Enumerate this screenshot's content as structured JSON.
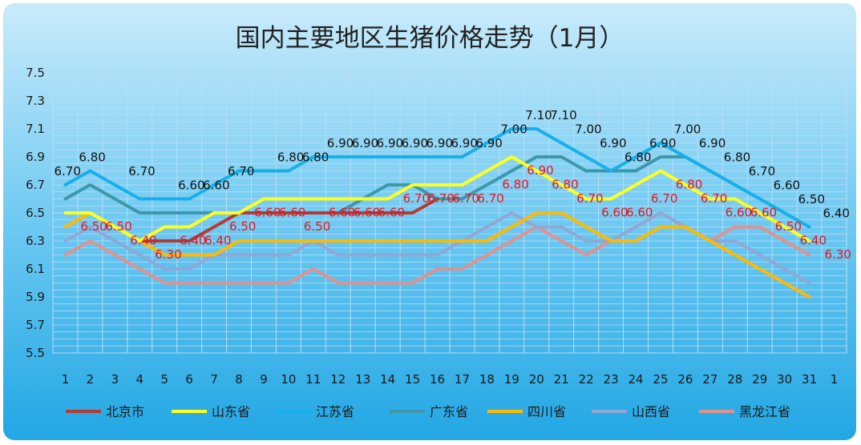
{
  "chart_data": {
    "type": "line",
    "title": "国内主要地区生猪价格走势（1月）",
    "xlabel": "",
    "ylabel": "",
    "ylim": [
      5.5,
      7.5
    ],
    "yticks": [
      "5.5",
      "5.7",
      "5.9",
      "6.1",
      "6.3",
      "6.5",
      "6.7",
      "6.9",
      "7.1",
      "7.3",
      "7.5"
    ],
    "categories": [
      "1",
      "2",
      "3",
      "4",
      "5",
      "6",
      "7",
      "8",
      "9",
      "10",
      "11",
      "12",
      "13",
      "14",
      "15",
      "16",
      "17",
      "18",
      "19",
      "20",
      "21",
      "22",
      "23",
      "24",
      "25",
      "26",
      "27",
      "28",
      "29",
      "30",
      "31",
      "1"
    ],
    "grid": true,
    "legend_position": "bottom",
    "series": [
      {
        "name": "北京市",
        "color": "#b53a36",
        "values": [
          null,
          null,
          null,
          6.3,
          6.3,
          6.3,
          6.4,
          6.5,
          6.5,
          6.5,
          6.5,
          6.5,
          6.5,
          6.5,
          6.5,
          6.6,
          null,
          null,
          null,
          null,
          null,
          null,
          null,
          null,
          null,
          null,
          null,
          null,
          null,
          null,
          null,
          null
        ]
      },
      {
        "name": "山东省",
        "color": "#ffff1e",
        "values": [
          6.5,
          6.5,
          6.4,
          6.3,
          6.4,
          6.4,
          6.5,
          6.5,
          6.6,
          6.6,
          6.6,
          6.6,
          6.6,
          6.6,
          6.7,
          6.7,
          6.7,
          6.8,
          6.9,
          6.8,
          6.7,
          6.6,
          6.6,
          6.7,
          6.8,
          6.7,
          6.6,
          6.6,
          6.5,
          6.4,
          6.3,
          null
        ]
      },
      {
        "name": "江苏省",
        "color": "#17b0ea",
        "values": [
          6.7,
          6.8,
          6.7,
          6.6,
          6.6,
          6.6,
          6.7,
          6.8,
          6.8,
          6.8,
          6.9,
          6.9,
          6.9,
          6.9,
          6.9,
          6.9,
          6.9,
          7.0,
          7.1,
          7.1,
          7.0,
          6.9,
          6.8,
          6.9,
          7.0,
          6.9,
          6.8,
          6.7,
          6.6,
          6.5,
          6.4,
          null
        ]
      },
      {
        "name": "广东省",
        "color": "#3d98a9",
        "values": [
          6.6,
          6.7,
          6.6,
          6.5,
          6.5,
          6.5,
          6.5,
          6.5,
          6.5,
          6.5,
          6.5,
          6.5,
          6.6,
          6.7,
          6.7,
          6.6,
          6.6,
          6.7,
          6.8,
          6.9,
          6.9,
          6.8,
          6.8,
          6.8,
          6.9,
          6.9,
          6.8,
          6.7,
          6.6,
          6.5,
          null,
          null
        ]
      },
      {
        "name": "四川省",
        "color": "#ffba00",
        "values": [
          6.4,
          6.5,
          6.4,
          6.3,
          6.2,
          6.2,
          6.2,
          6.3,
          6.3,
          6.3,
          6.3,
          6.3,
          6.3,
          6.3,
          6.3,
          6.3,
          6.3,
          6.3,
          6.4,
          6.5,
          6.5,
          6.4,
          6.3,
          6.3,
          6.4,
          6.4,
          6.3,
          6.2,
          6.1,
          6.0,
          5.9,
          null
        ]
      },
      {
        "name": "山西省",
        "color": "#8fa8d4",
        "values": [
          6.3,
          6.4,
          6.3,
          6.2,
          6.1,
          6.1,
          6.2,
          6.2,
          6.2,
          6.2,
          6.3,
          6.2,
          6.2,
          6.2,
          6.2,
          6.2,
          6.3,
          6.4,
          6.5,
          6.4,
          6.4,
          6.3,
          6.3,
          6.4,
          6.5,
          6.4,
          6.3,
          6.3,
          6.2,
          6.1,
          6.0,
          null
        ]
      },
      {
        "name": "黑龙江省",
        "color": "#e0928f",
        "values": [
          6.2,
          6.3,
          6.2,
          6.1,
          6.0,
          6.0,
          6.0,
          6.0,
          6.0,
          6.0,
          6.1,
          6.0,
          6.0,
          6.0,
          6.0,
          6.1,
          6.1,
          6.2,
          6.3,
          6.4,
          6.3,
          6.2,
          6.3,
          6.4,
          6.5,
          6.4,
          6.3,
          6.4,
          6.4,
          6.3,
          6.2,
          null
        ]
      }
    ],
    "data_labels_black": [
      {
        "x": "1",
        "value": 6.7,
        "text": "6.70"
      },
      {
        "x": "2",
        "value": 6.8,
        "text": "6.80"
      },
      {
        "x": "4",
        "value": 6.7,
        "text": "6.70"
      },
      {
        "x": "6",
        "value": 6.6,
        "text": "6.60"
      },
      {
        "x": "7",
        "value": 6.6,
        "text": "6.60"
      },
      {
        "x": "8",
        "value": 6.7,
        "text": "6.70"
      },
      {
        "x": "10",
        "value": 6.8,
        "text": "6.80"
      },
      {
        "x": "11",
        "value": 6.8,
        "text": "6.80"
      },
      {
        "x": "12",
        "value": 6.9,
        "text": "6.90"
      },
      {
        "x": "13",
        "value": 6.9,
        "text": "6.90"
      },
      {
        "x": "14",
        "value": 6.9,
        "text": "6.90"
      },
      {
        "x": "15",
        "value": 6.9,
        "text": "6.90"
      },
      {
        "x": "16",
        "value": 6.9,
        "text": "6.90"
      },
      {
        "x": "17",
        "value": 6.9,
        "text": "6.90"
      },
      {
        "x": "18",
        "value": 6.9,
        "text": "6.90"
      },
      {
        "x": "19",
        "value": 7.0,
        "text": "7.00"
      },
      {
        "x": "20",
        "value": 7.1,
        "text": "7.10"
      },
      {
        "x": "21",
        "value": 7.1,
        "text": "7.10"
      },
      {
        "x": "22",
        "value": 7.0,
        "text": "7.00"
      },
      {
        "x": "23",
        "value": 6.9,
        "text": "6.90"
      },
      {
        "x": "24",
        "value": 6.8,
        "text": "6.80"
      },
      {
        "x": "25",
        "value": 6.9,
        "text": "6.90"
      },
      {
        "x": "26",
        "value": 7.0,
        "text": "7.00"
      },
      {
        "x": "27",
        "value": 6.9,
        "text": "6.90"
      },
      {
        "x": "28",
        "value": 6.8,
        "text": "6.80"
      },
      {
        "x": "29",
        "value": 6.7,
        "text": "6.70"
      },
      {
        "x": "30",
        "value": 6.6,
        "text": "6.60"
      },
      {
        "x": "31",
        "value": 6.5,
        "text": "6.50"
      },
      {
        "x": "1",
        "value": 6.4,
        "text": "6.40"
      }
    ],
    "data_labels_red": [
      {
        "x": "2",
        "value": 6.5,
        "text": "6.50"
      },
      {
        "x": "3",
        "value": 6.5,
        "text": "6.50"
      },
      {
        "x": "4",
        "value": 6.4,
        "text": "6.40"
      },
      {
        "x": "5",
        "value": 6.3,
        "text": "6.30"
      },
      {
        "x": "6",
        "value": 6.4,
        "text": "6.40"
      },
      {
        "x": "7",
        "value": 6.4,
        "text": "6.40"
      },
      {
        "x": "8",
        "value": 6.5,
        "text": "6.50"
      },
      {
        "x": "9",
        "value": 6.6,
        "text": "6.60"
      },
      {
        "x": "10",
        "value": 6.6,
        "text": "6.60"
      },
      {
        "x": "11",
        "value": 6.5,
        "text": "6.50"
      },
      {
        "x": "12",
        "value": 6.6,
        "text": "6.60"
      },
      {
        "x": "13",
        "value": 6.6,
        "text": "6.60"
      },
      {
        "x": "14",
        "value": 6.6,
        "text": "6.60"
      },
      {
        "x": "15",
        "value": 6.7,
        "text": "6.70"
      },
      {
        "x": "16",
        "value": 6.7,
        "text": "6.70"
      },
      {
        "x": "17",
        "value": 6.7,
        "text": "6.70"
      },
      {
        "x": "18",
        "value": 6.7,
        "text": "6.70"
      },
      {
        "x": "19",
        "value": 6.8,
        "text": "6.80"
      },
      {
        "x": "20",
        "value": 6.9,
        "text": "6.90"
      },
      {
        "x": "21",
        "value": 6.8,
        "text": "6.80"
      },
      {
        "x": "22",
        "value": 6.7,
        "text": "6.70"
      },
      {
        "x": "23",
        "value": 6.6,
        "text": "6.60"
      },
      {
        "x": "24",
        "value": 6.6,
        "text": "6.60"
      },
      {
        "x": "25",
        "value": 6.7,
        "text": "6.70"
      },
      {
        "x": "26",
        "value": 6.8,
        "text": "6.80"
      },
      {
        "x": "27",
        "value": 6.7,
        "text": "6.70"
      },
      {
        "x": "28",
        "value": 6.6,
        "text": "6.60"
      },
      {
        "x": "29",
        "value": 6.6,
        "text": "6.60"
      },
      {
        "x": "30",
        "value": 6.5,
        "text": "6.50"
      },
      {
        "x": "31",
        "value": 6.4,
        "text": "6.40"
      },
      {
        "x": "1",
        "value": 6.3,
        "text": "6.30"
      }
    ]
  }
}
